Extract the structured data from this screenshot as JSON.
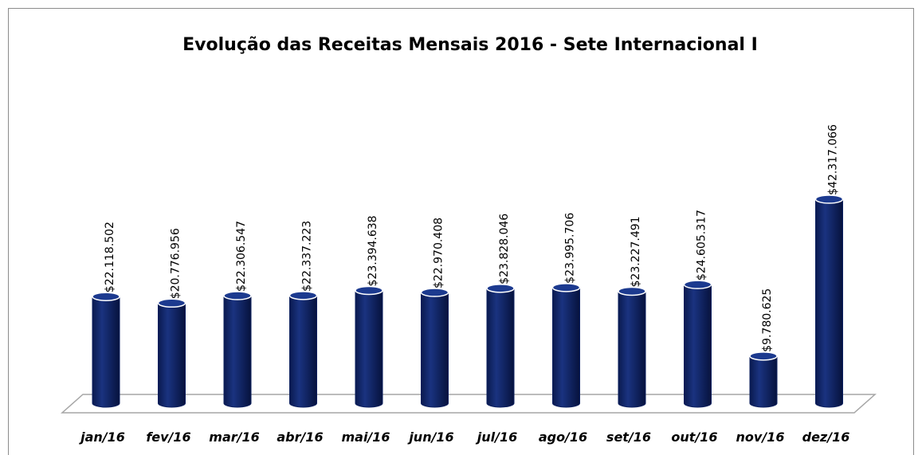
{
  "chart_data": {
    "type": "bar",
    "title": "Evolução das Receitas Mensais 2016 - Sete Internacional I",
    "categories": [
      "jan/16",
      "fev/16",
      "mar/16",
      "abr/16",
      "mai/16",
      "jun/16",
      "jul/16",
      "ago/16",
      "set/16",
      "out/16",
      "nov/16",
      "dez/16"
    ],
    "values": [
      22118502,
      20776956,
      22306547,
      22337223,
      23394638,
      22970408,
      23828046,
      23995706,
      23227491,
      24605317,
      9780625,
      42317066
    ],
    "value_labels": [
      "$22.118.502",
      "$20.776.956",
      "$22.306.547",
      "$22.337.223",
      "$23.394.638",
      "$22.970.408",
      "$23.828.046",
      "$23.995.706",
      "$23.227.491",
      "$24.605.317",
      "$9.780.625",
      "$42.317.066"
    ],
    "color": "#0b1f5e"
  }
}
